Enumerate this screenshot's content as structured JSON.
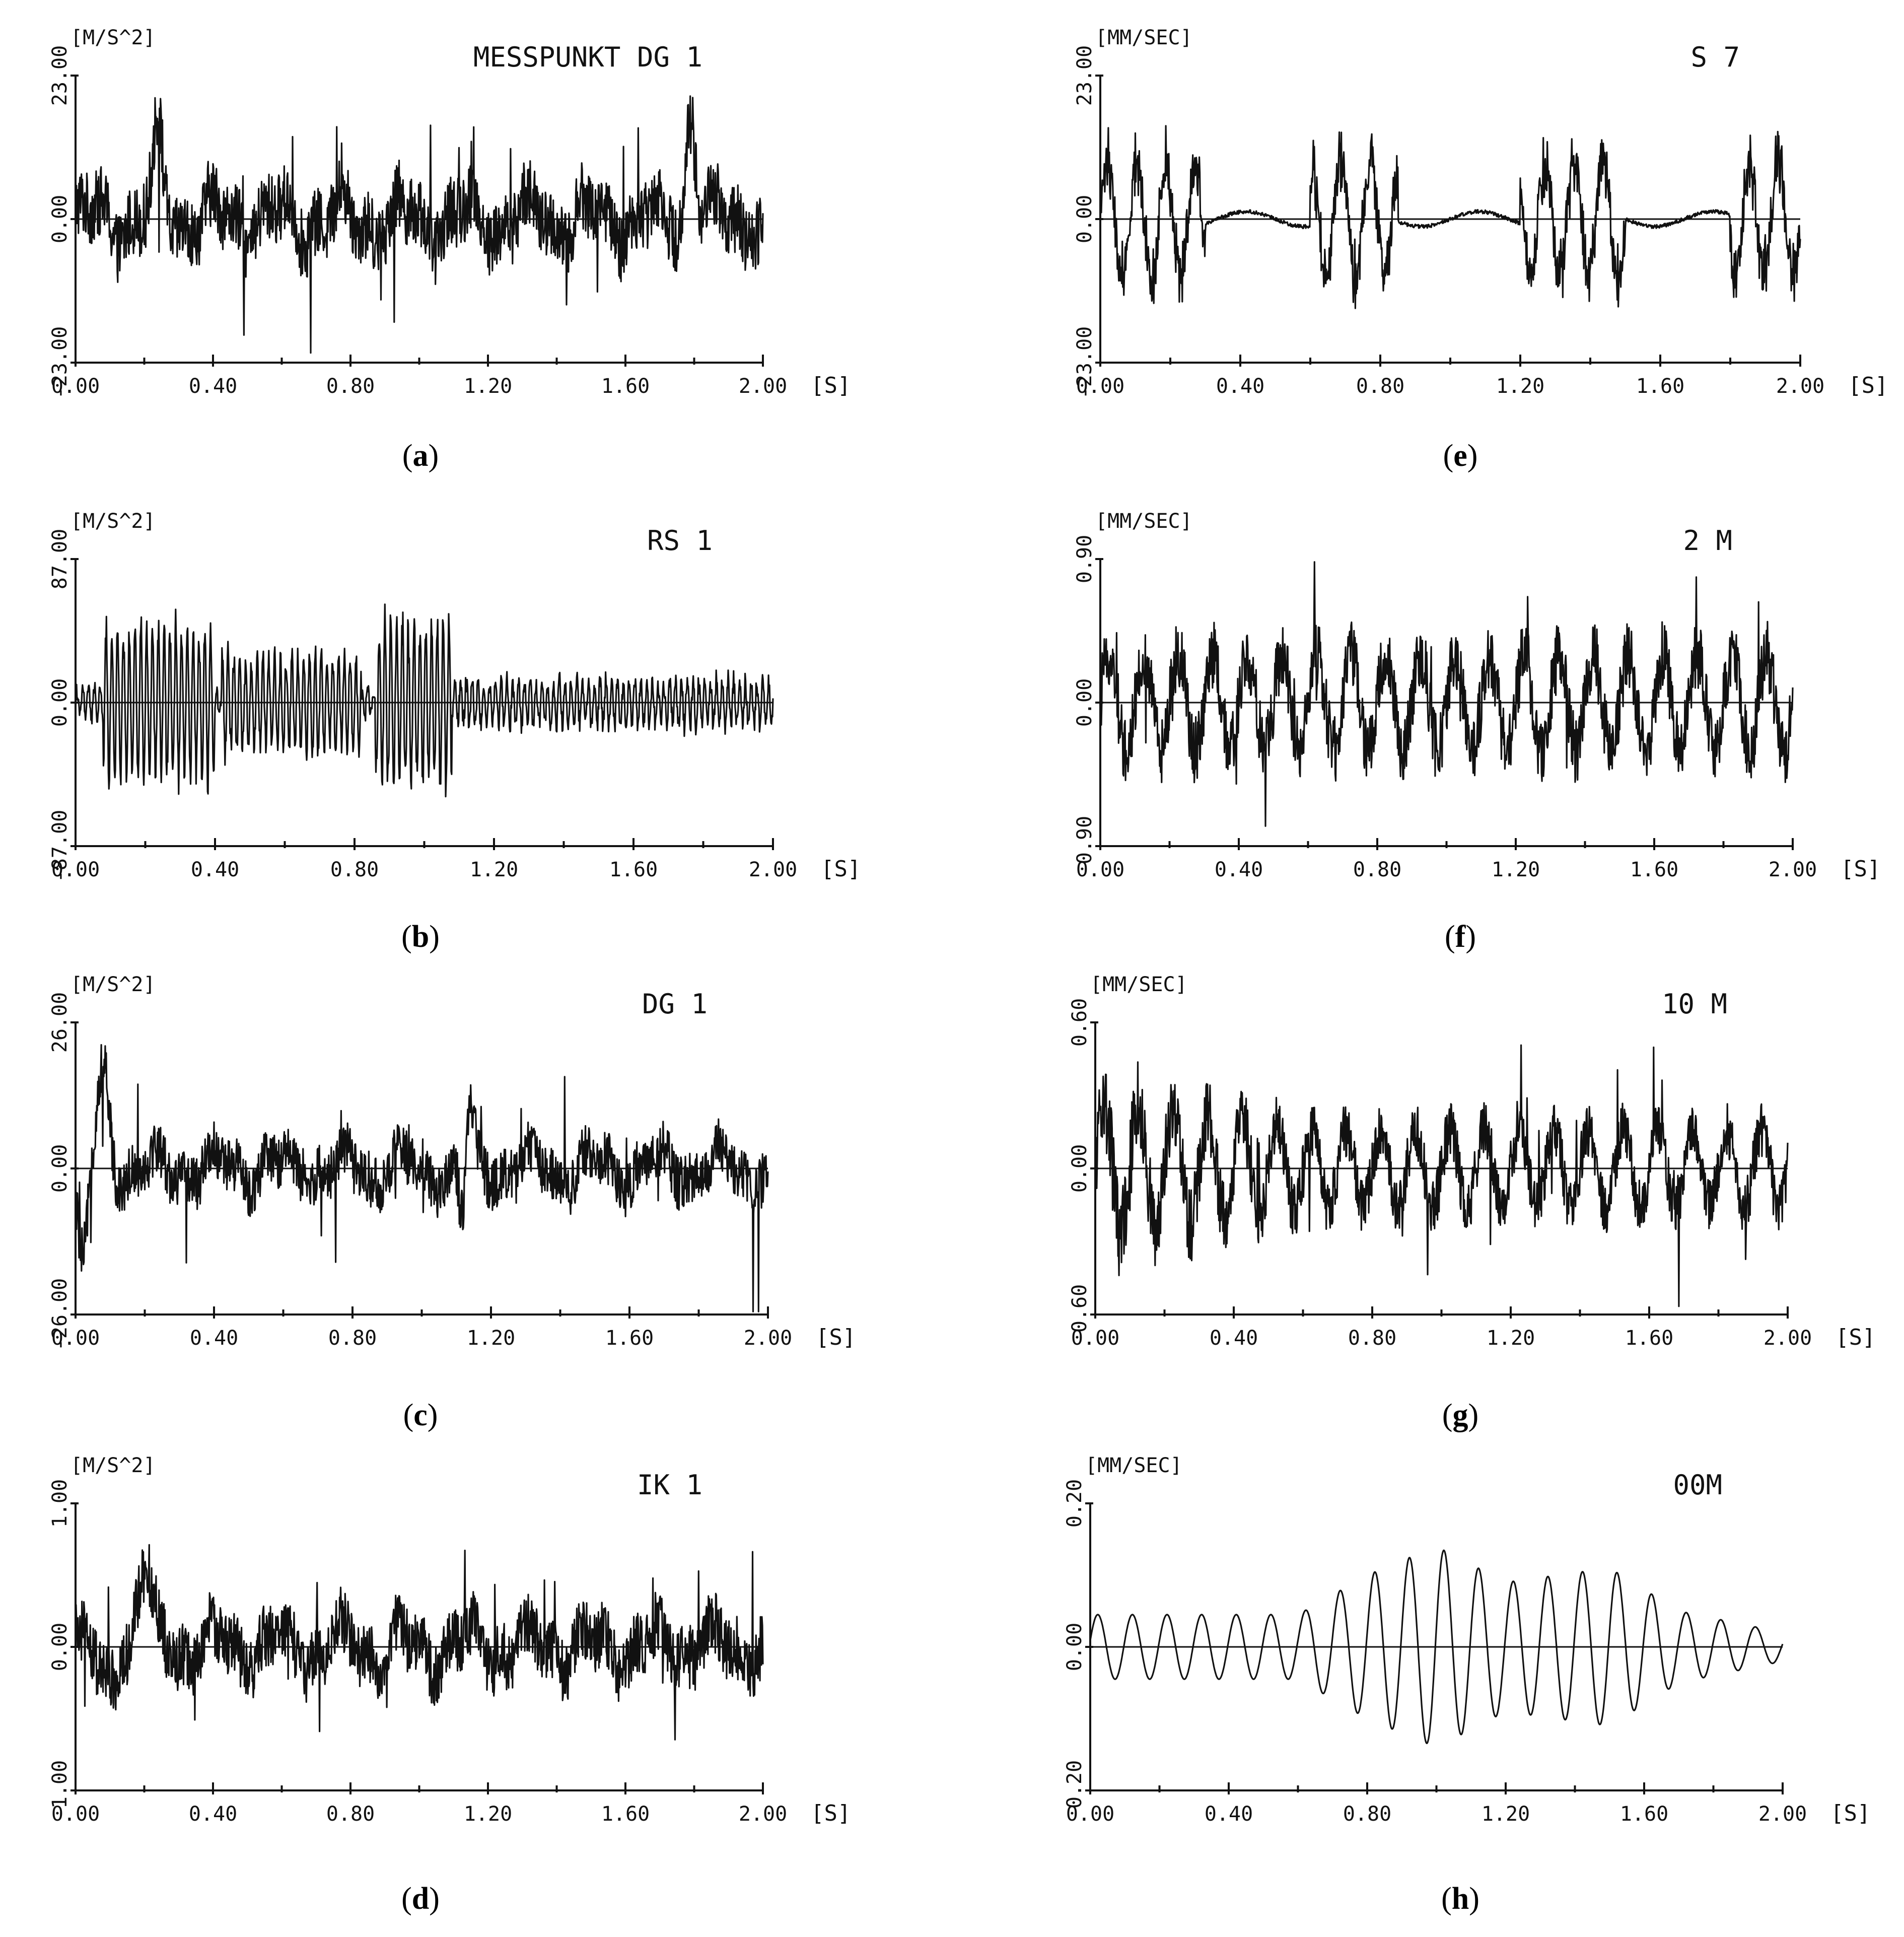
{
  "chart_data": [
    {
      "type": "line",
      "caption": "b0",
      "unit": "[M/S^2]",
      "title": "MESSPUNKT DG 1",
      "ylim": [
        -23.0,
        23.0
      ],
      "y_ticks": [
        "-23.00",
        "0.00",
        "23.00"
      ],
      "xlim": [
        0.0,
        2.0
      ],
      "x_ticks": [
        "0.00",
        "0.40",
        "0.80",
        "1.20",
        "1.60",
        "2.00"
      ],
      "x_unit": "[S]",
      "signal": {
        "style": "noisy",
        "amp": 7,
        "spike": 23,
        "pulses": [
          [
            0.24,
            12,
            0.02
          ],
          [
            1.79,
            18,
            0.02
          ]
        ]
      }
    },
    {
      "type": "line",
      "caption": "b1",
      "unit": "[M/S^2]",
      "title": "RS 1",
      "ylim": [
        -87.0,
        87.0
      ],
      "y_ticks": [
        "-87.00",
        "0.00",
        "87.00"
      ],
      "xlim": [
        0.0,
        2.0
      ],
      "x_ticks": [
        "0.00",
        "0.40",
        "0.80",
        "1.20",
        "1.60",
        "2.00"
      ],
      "x_unit": "[S]",
      "signal": {
        "style": "bursts",
        "amp": 18,
        "spike": 80,
        "bursts": [
          [
            0.08,
            0.4,
            55
          ],
          [
            0.42,
            0.82,
            35
          ],
          [
            0.86,
            1.08,
            58
          ],
          [
            1.08,
            2.0,
            16
          ]
        ]
      }
    },
    {
      "type": "line",
      "caption": "b2",
      "unit": "[M/S^2]",
      "title": "DG 1",
      "ylim": [
        -26.0,
        26.0
      ],
      "y_ticks": [
        "-26.00",
        "0.00",
        "26.00"
      ],
      "xlim": [
        0.0,
        2.0
      ],
      "x_ticks": [
        "0.00",
        "0.40",
        "0.80",
        "1.20",
        "1.60",
        "2.00"
      ],
      "x_unit": "[S]",
      "signal": {
        "style": "noisy",
        "amp": 6,
        "spike": 26,
        "pulses": [
          [
            0.02,
            -18,
            0.02
          ],
          [
            0.08,
            16,
            0.025
          ],
          [
            1.12,
            -20,
            0.015
          ],
          [
            1.13,
            15,
            0.02
          ]
        ]
      }
    },
    {
      "type": "line",
      "caption": "b3",
      "unit": "[M/S^2]",
      "title": "IK 1",
      "ylim": [
        -1.0,
        1.0
      ],
      "y_ticks": [
        "-1.00",
        "0.00",
        "1.00"
      ],
      "xlim": [
        0.0,
        2.0
      ],
      "x_ticks": [
        "0.00",
        "0.40",
        "0.80",
        "1.20",
        "1.60",
        "2.00"
      ],
      "x_unit": "[S]",
      "signal": {
        "style": "noisy",
        "amp": 0.28,
        "spike": 0.95,
        "pulses": [
          [
            0.2,
            0.5,
            0.03
          ],
          [
            0.08,
            -0.3,
            0.03
          ]
        ]
      }
    },
    {
      "type": "line",
      "caption": "b4",
      "unit": "[MM/SEC]",
      "title": "S 7",
      "ylim": [
        -23.0,
        23.0
      ],
      "y_ticks": [
        "-23.00",
        "0.00",
        "23.00"
      ],
      "xlim": [
        0.0,
        2.0
      ],
      "x_ticks": [
        "0.00",
        "0.40",
        "0.80",
        "1.20",
        "1.60",
        "2.00"
      ],
      "x_unit": "[S]",
      "signal": {
        "style": "groups",
        "amp": 10,
        "spike": 22,
        "groups": [
          [
            0.0,
            0.3
          ],
          [
            0.6,
            0.85
          ],
          [
            1.2,
            1.5
          ],
          [
            1.8,
            2.0
          ]
        ]
      }
    },
    {
      "type": "line",
      "caption": "b5",
      "unit": "[MM/SEC]",
      "title": "2 M",
      "ylim": [
        -0.9,
        0.9
      ],
      "y_ticks": [
        "-0.90",
        "0.00",
        "0.90"
      ],
      "xlim": [
        0.0,
        2.0
      ],
      "x_ticks": [
        "0.00",
        "0.40",
        "0.80",
        "1.20",
        "1.60",
        "2.00"
      ],
      "x_unit": "[S]",
      "signal": {
        "style": "wave_noise",
        "amp": 0.3,
        "spike": 0.85,
        "freq": 10
      }
    },
    {
      "type": "line",
      "caption": "b6",
      "unit": "[MM/SEC]",
      "title": "10 M",
      "ylim": [
        -0.6,
        0.6
      ],
      "y_ticks": [
        "-0.60",
        "0.00",
        "0.60"
      ],
      "xlim": [
        0.0,
        2.0
      ],
      "x_ticks": [
        "0.00",
        "0.40",
        "0.80",
        "1.20",
        "1.60",
        "2.00"
      ],
      "x_unit": "[S]",
      "signal": {
        "style": "wave_noise",
        "amp": 0.16,
        "spike": 0.55,
        "freq": 10,
        "decay": true
      }
    },
    {
      "type": "line",
      "caption": "b7",
      "unit": "[MM/SEC]",
      "title": "00M",
      "ylim": [
        -0.2,
        0.2
      ],
      "y_ticks": [
        "-0.20",
        "0.00",
        "0.20"
      ],
      "xlim": [
        0.0,
        2.0
      ],
      "x_ticks": [
        "0.00",
        "0.40",
        "0.80",
        "1.20",
        "1.60",
        "2.00"
      ],
      "x_unit": "[S]",
      "signal": {
        "style": "sine_envelope",
        "freq": 10,
        "env": [
          [
            0.0,
            0.045
          ],
          [
            0.6,
            0.045
          ],
          [
            0.8,
            0.1
          ],
          [
            1.0,
            0.14
          ],
          [
            1.2,
            0.09
          ],
          [
            1.5,
            0.11
          ],
          [
            1.7,
            0.05
          ],
          [
            2.0,
            0.02
          ]
        ]
      }
    }
  ],
  "captions": [
    "a",
    "b",
    "c",
    "d",
    "e",
    "f",
    "g",
    "h"
  ]
}
